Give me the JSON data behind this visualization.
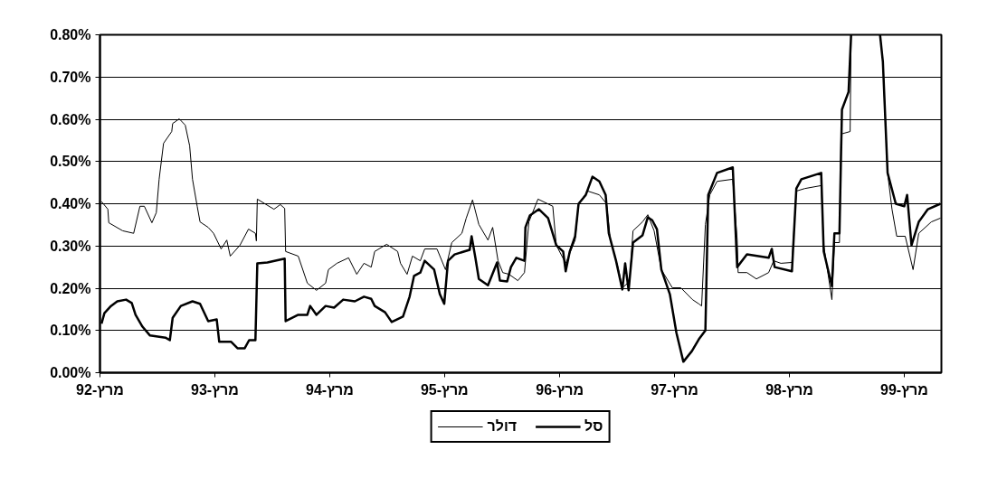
{
  "chart_data": {
    "type": "line",
    "xlim": [
      "1992-03-01",
      "1999-06-27"
    ],
    "xticks": [
      {
        "value": "1992-03-01",
        "label": "מרץ-92"
      },
      {
        "value": "1993-03-01",
        "label": "מרץ-93"
      },
      {
        "value": "1994-03-01",
        "label": "מרץ-94"
      },
      {
        "value": "1995-03-01",
        "label": "מרץ-95"
      },
      {
        "value": "1996-03-01",
        "label": "מרץ-96"
      },
      {
        "value": "1997-03-01",
        "label": "מרץ-97"
      },
      {
        "value": "1998-03-01",
        "label": "מרץ-98"
      },
      {
        "value": "1999-03-01",
        "label": "מרץ-99"
      }
    ],
    "ylim": [
      0,
      0.8
    ],
    "yticks": [
      {
        "value": 0,
        "label": "0.00%"
      },
      {
        "value": 0.1,
        "label": "0.10%"
      },
      {
        "value": 0.2,
        "label": "0.20%"
      },
      {
        "value": 0.3,
        "label": "0.30%"
      },
      {
        "value": 0.4,
        "label": "0.40%"
      },
      {
        "value": 0.5,
        "label": "0.50%"
      },
      {
        "value": 0.6,
        "label": "0.60%"
      },
      {
        "value": 0.7,
        "label": "0.70%"
      },
      {
        "value": 0.8,
        "label": "0.80%"
      }
    ],
    "grid": "y",
    "legend": "bottom",
    "series": [
      {
        "name": "דולר",
        "color": "#000000",
        "x": [
          "1992-03-06",
          "1992-03-26",
          "1992-03-29",
          "1992-05-12",
          "1992-06-16",
          "1992-07-06",
          "1992-07-20",
          "1992-08-13",
          "1992-08-27",
          "1992-09-05",
          "1992-09-19",
          "1992-10-15",
          "1992-10-18",
          "1992-11-08",
          "1992-11-27",
          "1992-12-11",
          "1992-12-20",
          "1993-01-04",
          "1993-01-13",
          "1993-02-08",
          "1993-02-25",
          "1993-03-21",
          "1993-04-08",
          "1993-04-19",
          "1993-05-20",
          "1993-06-16",
          "1993-07-08",
          "1993-07-11",
          "1993-07-14",
          "1993-08-07",
          "1993-09-05",
          "1993-09-25",
          "1993-10-09",
          "1993-10-12",
          "1993-11-21",
          "1993-12-20",
          "1994-01-18",
          "1994-02-16",
          "1994-02-25",
          "1994-03-24",
          "1994-04-30",
          "1994-05-26",
          "1994-06-18",
          "1994-07-11",
          "1994-07-22",
          "1994-08-29",
          "1994-10-03",
          "1994-10-12",
          "1994-11-02",
          "1994-11-19",
          "1994-12-14",
          "1994-12-28",
          "1995-02-05",
          "1995-03-04",
          "1995-03-24",
          "1995-04-25",
          "1995-05-09",
          "1995-05-29",
          "1995-06-18",
          "1995-07-17",
          "1995-08-01",
          "1995-08-18",
          "1995-09-02",
          "1995-09-22",
          "1995-10-20",
          "1995-11-10",
          "1995-11-24",
          "1995-12-23",
          "1996-02-08",
          "1996-02-19",
          "1996-03-20",
          "1996-04-19",
          "1996-04-30",
          "1996-05-29",
          "1996-07-05",
          "1996-07-28",
          "1996-08-09",
          "1996-09-02",
          "1996-09-16",
          "1996-10-09",
          "1996-10-20",
          "1996-11-19",
          "1996-12-06",
          "1996-12-26",
          "1997-01-18",
          "1997-02-22",
          "1997-03-21",
          "1997-04-27",
          "1997-05-17",
          "1997-05-26",
          "1997-06-07",
          "1997-06-21",
          "1997-07-14",
          "1997-09-02",
          "1997-09-16",
          "1997-09-19",
          "1997-10-17",
          "1997-11-16",
          "1997-12-25",
          "1998-01-10",
          "1998-02-02",
          "1998-03-09",
          "1998-03-23",
          "1998-04-19",
          "1998-06-10",
          "1998-06-18",
          "1998-07-14",
          "1998-07-22",
          "1998-08-07",
          "1998-08-12",
          "1998-09-10",
          "1998-09-13",
          "1998-11-01",
          "1998-12-14",
          "1998-12-23",
          "1999-01-07",
          "1999-01-21",
          "1999-02-05",
          "1999-03-04",
          "1999-03-29",
          "1999-04-16",
          "1999-05-26",
          "1999-06-24"
        ],
        "values": [
          0.405,
          0.387,
          0.355,
          0.336,
          0.33,
          0.394,
          0.394,
          0.355,
          0.379,
          0.458,
          0.543,
          0.571,
          0.59,
          0.601,
          0.586,
          0.537,
          0.458,
          0.394,
          0.357,
          0.344,
          0.33,
          0.293,
          0.314,
          0.276,
          0.302,
          0.34,
          0.33,
          0.312,
          0.411,
          0.4,
          0.387,
          0.398,
          0.389,
          0.287,
          0.276,
          0.212,
          0.195,
          0.212,
          0.244,
          0.259,
          0.272,
          0.233,
          0.259,
          0.25,
          0.287,
          0.304,
          0.287,
          0.259,
          0.233,
          0.276,
          0.265,
          0.293,
          0.293,
          0.244,
          0.308,
          0.33,
          0.366,
          0.409,
          0.351,
          0.314,
          0.344,
          0.265,
          0.237,
          0.233,
          0.218,
          0.237,
          0.357,
          0.411,
          0.394,
          0.302,
          0.259,
          0.314,
          0.4,
          0.43,
          0.421,
          0.4,
          0.314,
          0.25,
          0.201,
          0.216,
          0.336,
          0.357,
          0.374,
          0.336,
          0.244,
          0.201,
          0.201,
          0.173,
          0.163,
          0.158,
          0.351,
          0.421,
          0.453,
          0.458,
          0.314,
          0.237,
          0.237,
          0.222,
          0.237,
          0.265,
          0.259,
          0.261,
          0.43,
          0.436,
          0.443,
          0.302,
          0.173,
          0.308,
          0.308,
          0.565,
          0.571,
          0.8,
          null,
          0.8,
          0.736,
          0.473,
          0.387,
          0.323,
          0.323,
          0.244,
          0.33,
          0.357,
          0.366
        ]
      },
      {
        "name": "סל",
        "color": "#000000",
        "x": [
          "1992-03-06",
          "1992-03-15",
          "1992-04-05",
          "1992-04-25",
          "1992-05-23",
          "1992-06-10",
          "1992-06-22",
          "1992-07-14",
          "1992-08-07",
          "1992-09-25",
          "1992-10-09",
          "1992-10-18",
          "1992-11-13",
          "1992-12-20",
          "1993-01-13",
          "1993-02-08",
          "1993-03-07",
          "1993-03-15",
          "1993-04-22",
          "1993-05-12",
          "1993-06-04",
          "1993-06-18",
          "1993-07-08",
          "1993-07-14",
          "1993-08-15",
          "1993-10-09",
          "1993-10-12",
          "1993-11-21",
          "1993-12-20",
          "1993-12-29",
          "1994-01-18",
          "1994-02-16",
          "1994-03-15",
          "1994-04-13",
          "1994-05-20",
          "1994-06-18",
          "1994-07-11",
          "1994-07-22",
          "1994-08-24",
          "1994-09-14",
          "1994-10-20",
          "1994-11-10",
          "1994-11-24",
          "1994-12-14",
          "1994-12-28",
          "1995-01-27",
          "1995-02-14",
          "1995-02-28",
          "1995-03-12",
          "1995-04-02",
          "1995-05-20",
          "1995-05-26",
          "1995-06-07",
          "1995-06-18",
          "1995-07-17",
          "1995-08-15",
          "1995-08-24",
          "1995-09-16",
          "1995-09-28",
          "1995-10-15",
          "1995-11-10",
          "1995-11-13",
          "1995-11-27",
          "1995-12-26",
          "1996-01-24",
          "1996-02-19",
          "1996-03-12",
          "1996-03-20",
          "1996-04-02",
          "1996-04-19",
          "1996-04-30",
          "1996-05-23",
          "1996-06-13",
          "1996-07-05",
          "1996-07-25",
          "1996-08-04",
          "1996-08-27",
          "1996-09-16",
          "1996-09-25",
          "1996-10-06",
          "1996-10-20",
          "1996-11-19",
          "1996-12-06",
          "1996-12-20",
          "1997-01-04",
          "1997-01-18",
          "1997-02-14",
          "1997-03-07",
          "1997-03-29",
          "1997-04-25",
          "1997-05-17",
          "1997-06-07",
          "1997-06-16",
          "1997-07-14",
          "1997-09-02",
          "1997-09-16",
          "1997-10-17",
          "1997-12-25",
          "1998-01-04",
          "1998-01-13",
          "1998-03-09",
          "1998-03-23",
          "1998-04-08",
          "1998-06-10",
          "1998-06-18",
          "1998-07-14",
          "1998-07-22",
          "1998-08-07",
          "1998-08-15",
          "1998-09-05",
          "1998-09-13",
          "1998-11-01",
          "1998-12-14",
          "1998-12-23",
          "1999-01-07",
          "1999-02-02",
          "1999-03-01",
          "1999-03-10",
          "1999-03-24",
          "1999-04-16",
          "1999-05-15",
          "1999-06-24"
        ],
        "values": [
          0.116,
          0.141,
          0.158,
          0.169,
          0.173,
          0.165,
          0.137,
          0.109,
          0.088,
          0.083,
          0.077,
          0.13,
          0.158,
          0.169,
          0.163,
          0.122,
          0.126,
          0.073,
          0.073,
          0.058,
          0.058,
          0.077,
          0.077,
          0.259,
          0.261,
          0.27,
          0.122,
          0.137,
          0.137,
          0.158,
          0.137,
          0.158,
          0.154,
          0.173,
          0.169,
          0.18,
          0.175,
          0.158,
          0.143,
          0.12,
          0.133,
          0.18,
          0.229,
          0.237,
          0.265,
          0.244,
          0.186,
          0.163,
          0.265,
          0.28,
          0.291,
          0.323,
          0.272,
          0.222,
          0.207,
          0.261,
          0.218,
          0.216,
          0.25,
          0.272,
          0.265,
          0.344,
          0.372,
          0.387,
          0.366,
          0.302,
          0.287,
          0.24,
          0.287,
          0.323,
          0.4,
          0.421,
          0.464,
          0.453,
          0.421,
          0.33,
          0.265,
          0.197,
          0.259,
          0.195,
          0.308,
          0.325,
          0.368,
          0.361,
          0.34,
          0.244,
          0.186,
          0.094,
          0.026,
          0.051,
          0.079,
          0.1,
          0.421,
          0.473,
          0.486,
          0.25,
          0.28,
          0.272,
          0.293,
          0.25,
          0.24,
          0.436,
          0.458,
          0.473,
          0.287,
          0.205,
          0.33,
          0.33,
          0.623,
          0.665,
          0.8,
          null,
          0.8,
          0.736,
          0.473,
          0.4,
          0.394,
          0.421,
          0.302,
          0.357,
          0.387,
          0.4
        ]
      }
    ]
  }
}
